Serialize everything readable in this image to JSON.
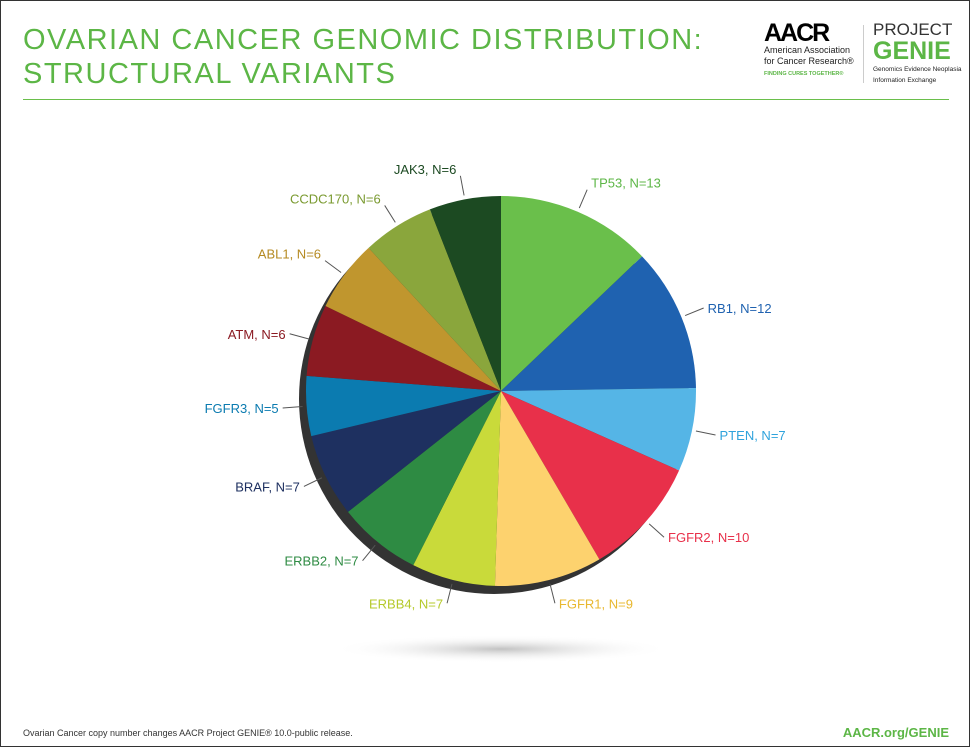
{
  "header": {
    "title_line1": "OVARIAN CANCER GENOMIC DISTRIBUTION:",
    "title_line2": "STRUCTURAL VARIANTS",
    "aacr_logo": "AACR",
    "aacr_name1": "American Association",
    "aacr_name2": "for Cancer Research®",
    "aacr_tagline": "FINDING CURES TOGETHER®",
    "genie_project": "PROJECT",
    "genie_name": "GENIE",
    "genie_sub1": "Genomics Evidence Neoplasia",
    "genie_sub2": "Information Exchange"
  },
  "footer": {
    "note": "Ovarian Cancer copy number changes AACR Project GENIE® 10.0-public release.",
    "link": "AACR.org/GENIE"
  },
  "colors": {
    "accent": "#5cb646"
  },
  "chart_data": {
    "type": "pie",
    "start": "12 o'clock",
    "direction": "clockwise",
    "categories": [
      "TP53",
      "RB1",
      "PTEN",
      "FGFR2",
      "FGFR1",
      "ERBB4",
      "ERBB2",
      "BRAF",
      "FGFR3",
      "ATM",
      "ABL1",
      "CCDC170",
      "JAK3"
    ],
    "values": [
      13,
      12,
      7,
      10,
      9,
      7,
      7,
      7,
      5,
      6,
      6,
      6,
      6
    ],
    "labels": [
      "TP53, N=13",
      "RB1, N=12",
      "PTEN, N=7",
      "FGFR2, N=10",
      "FGFR1, N=9",
      "ERBB4, N=7",
      "ERBB2, N=7",
      "BRAF, N=7",
      "FGFR3, N=5",
      "ATM, N=6",
      "ABL1, N=6",
      "CCDC170, N=6",
      "JAK3, N=6"
    ],
    "colors": [
      "#6abf4b",
      "#1f62b0",
      "#55b5e6",
      "#e8304a",
      "#fdd26e",
      "#c9da3a",
      "#2e8b43",
      "#1e3060",
      "#0b7bb0",
      "#8b1a22",
      "#c0962e",
      "#8aa63c",
      "#1c4a22"
    ],
    "label_colors": [
      "#5cb646",
      "#1f62b0",
      "#2fa3dc",
      "#e8304a",
      "#e8b830",
      "#b5c92a",
      "#2e8b43",
      "#1e3060",
      "#0b7bb0",
      "#8b1a22",
      "#b58a22",
      "#7a9a30",
      "#1c4a22"
    ]
  }
}
